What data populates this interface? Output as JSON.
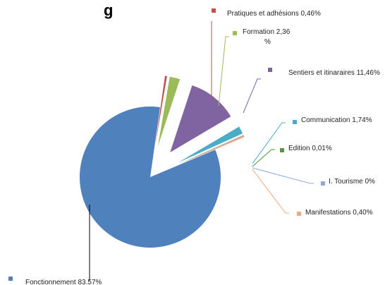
{
  "chart_data": {
    "type": "pie",
    "title_fragment": "g",
    "exploded": true,
    "data_labels": "outside-with-leader-lines",
    "slices": [
      {
        "label": "Pratiques et adhésions",
        "value": 0.46,
        "display": "Pratiques et adhésions 0,46%",
        "color": "#C0504D"
      },
      {
        "label": "Formation",
        "value": 2.36,
        "display_lines": [
          "Formation 2,36",
          "%"
        ],
        "color": "#9BBB59"
      },
      {
        "label": "Sentiers et itinaraires",
        "value": 11.46,
        "display": "Sentiers et itinaraires 11,46%",
        "color": "#8064A2"
      },
      {
        "label": "Communication",
        "value": 1.74,
        "display": "Communication 1,74%",
        "color": "#4BACC6"
      },
      {
        "label": "Edition",
        "value": 0.01,
        "display": "Edition 0,01%",
        "color": "#4F9A3C"
      },
      {
        "label": "I. Tourisme",
        "value": 0,
        "display": "I. Tourisme 0%",
        "color": "#8EA9DB"
      },
      {
        "label": "Manifestations",
        "value": 0.4,
        "display": "Manifestations 0,40%",
        "color": "#F4A582"
      },
      {
        "label": "Fonctionnement",
        "value": 83.57,
        "display": "Fonctionnement 83.57%",
        "color": "#4F81BD"
      }
    ]
  }
}
